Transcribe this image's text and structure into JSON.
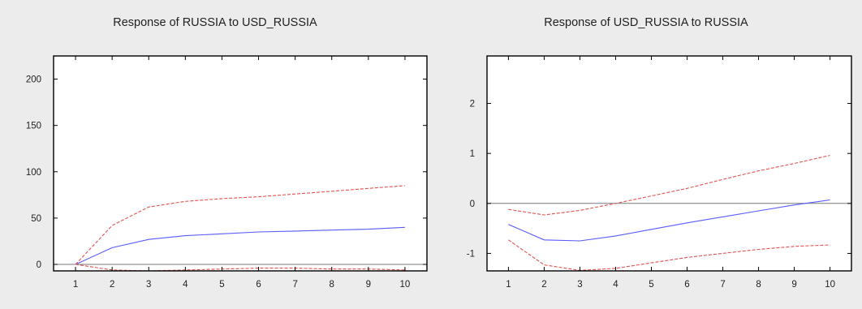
{
  "chart_data": [
    {
      "type": "line",
      "title": "Response of RUSSIA to USD_RUSSIA",
      "x": [
        1,
        2,
        3,
        4,
        5,
        6,
        7,
        8,
        9,
        10
      ],
      "ylim": [
        -7,
        225
      ],
      "yticks": [
        0,
        50,
        100,
        150,
        200
      ],
      "series": [
        {
          "role": "response",
          "color": "#5a5aff",
          "style": "solid",
          "values": [
            0,
            18,
            27,
            31,
            33,
            35,
            36,
            37,
            38,
            40
          ]
        },
        {
          "role": "upper-band",
          "color": "#e25050",
          "style": "dashed",
          "values": [
            0,
            42,
            62,
            68,
            71,
            73,
            76,
            79,
            82,
            85
          ]
        },
        {
          "role": "lower-band",
          "color": "#e25050",
          "style": "dashed",
          "values": [
            0,
            -6,
            -7,
            -6,
            -5,
            -4,
            -4,
            -5,
            -5,
            -6
          ]
        }
      ],
      "zero_line": 0
    },
    {
      "type": "line",
      "title": "Response of USD_RUSSIA to RUSSIA",
      "x": [
        1,
        2,
        3,
        4,
        5,
        6,
        7,
        8,
        9,
        10
      ],
      "ylim": [
        -1.35,
        2.95
      ],
      "yticks": [
        -1,
        0,
        1,
        2
      ],
      "series": [
        {
          "role": "response",
          "color": "#5a5aff",
          "style": "solid",
          "values": [
            -0.42,
            -0.73,
            -0.75,
            -0.65,
            -0.52,
            -0.39,
            -0.27,
            -0.15,
            -0.03,
            0.07
          ]
        },
        {
          "role": "upper-band",
          "color": "#e25050",
          "style": "dashed",
          "values": [
            -0.12,
            -0.23,
            -0.14,
            0.0,
            0.15,
            0.3,
            0.48,
            0.65,
            0.8,
            0.96
          ]
        },
        {
          "role": "lower-band",
          "color": "#e25050",
          "style": "dashed",
          "values": [
            -0.73,
            -1.23,
            -1.34,
            -1.3,
            -1.19,
            -1.08,
            -1.0,
            -0.92,
            -0.86,
            -0.83
          ]
        }
      ],
      "zero_line": 0
    }
  ]
}
